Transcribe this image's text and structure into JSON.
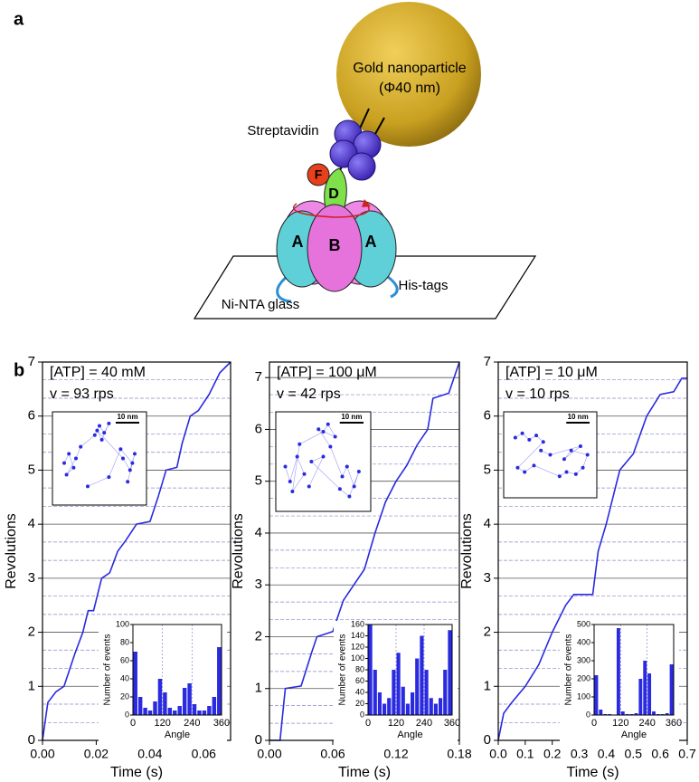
{
  "panel_a": {
    "label": "a",
    "sphere_title": "Gold nanoparticle",
    "sphere_size": "(Φ40 nm)",
    "streptavidin": "Streptavidin",
    "subunit_f": "F",
    "subunit_d": "D",
    "subunit_a_left": "A",
    "subunit_b": "B",
    "subunit_a_right": "A",
    "glass": "Ni-NTA glass",
    "tags": "His-tags"
  },
  "panel_b": {
    "label": "b"
  },
  "chart_data": [
    {
      "type": "line",
      "annotations": [
        "[ATP] = 40 mM",
        "v = 93 rps"
      ],
      "xlabel": "Time (s)",
      "ylabel": "Revolutions",
      "color": "#2a2ae0",
      "grid": true,
      "x": [
        0,
        0.002,
        0.005,
        0.008,
        0.012,
        0.015,
        0.017,
        0.019,
        0.022,
        0.025,
        0.028,
        0.031,
        0.035,
        0.04,
        0.043,
        0.046,
        0.05,
        0.052,
        0.055,
        0.058,
        0.062,
        0.066,
        0.07
      ],
      "values": [
        0,
        0.7,
        0.9,
        1.0,
        1.6,
        2.0,
        2.4,
        2.4,
        3.0,
        3.1,
        3.5,
        3.7,
        4.0,
        4.05,
        4.5,
        5.0,
        5.05,
        5.5,
        6.0,
        6.1,
        6.4,
        6.8,
        7.0
      ],
      "xlim": [
        0,
        0.07
      ],
      "xticks": [
        {
          "value": 0,
          "label": "0.00"
        },
        0.02,
        0.04,
        0.06
      ],
      "ylim": [
        0,
        7
      ],
      "yticks": [
        0,
        1,
        2,
        3,
        4,
        5,
        6,
        7
      ],
      "minor_yticks": [
        0.33,
        0.67,
        1.33,
        1.67,
        2.33,
        2.67,
        3.33,
        3.67,
        4.33,
        4.67,
        5.33,
        5.67,
        6.33,
        6.67
      ],
      "inset_scatter": {
        "type": "scatter",
        "color": "#2a2ae0",
        "scale_bar": {
          "label": "10 nm",
          "length": 10
        },
        "xlim": [
          0,
          40
        ],
        "ylim": [
          0,
          40
        ],
        "x": [
          5,
          7,
          9,
          6,
          10,
          12,
          18,
          20,
          22,
          24,
          21,
          19,
          30,
          33,
          35,
          32,
          34,
          29,
          24,
          15
        ],
        "values": [
          18,
          22,
          16,
          13,
          20,
          25,
          30,
          34,
          31,
          35,
          28,
          32,
          20,
          15,
          22,
          10,
          18,
          24,
          12,
          8
        ]
      },
      "inset_histogram": {
        "type": "histogram",
        "xlabel": "Angle",
        "ylabel": "Number of events",
        "color": "#2a2ae0",
        "grid": true,
        "bins": [
          0,
          20,
          40,
          60,
          80,
          100,
          120,
          140,
          160,
          180,
          200,
          220,
          240,
          260,
          280,
          300,
          320,
          340,
          360
        ],
        "values": [
          70,
          20,
          8,
          5,
          15,
          40,
          25,
          8,
          5,
          10,
          30,
          35,
          12,
          5,
          5,
          10,
          20,
          75
        ],
        "xlim": [
          0,
          360
        ],
        "xticks": [
          0,
          120,
          240,
          360
        ],
        "ylim": [
          0,
          100
        ],
        "yticks": [
          0,
          20,
          40,
          60,
          80,
          100
        ]
      }
    },
    {
      "type": "line",
      "annotations": [
        "[ATP] = 100 μM",
        "v = 42 rps"
      ],
      "xlabel": "Time (s)",
      "ylabel": "Revolutions",
      "color": "#2a2ae0",
      "grid": true,
      "x": [
        0,
        0.01,
        0.015,
        0.03,
        0.04,
        0.045,
        0.06,
        0.07,
        0.08,
        0.09,
        0.1,
        0.11,
        0.12,
        0.13,
        0.14,
        0.15,
        0.155,
        0.17,
        0.18
      ],
      "values": [
        0,
        0,
        1.0,
        1.05,
        1.7,
        2.0,
        2.1,
        2.7,
        3.0,
        3.3,
        4.0,
        4.6,
        5.0,
        5.3,
        5.7,
        6.0,
        6.6,
        6.7,
        7.3
      ],
      "xlim": [
        0,
        0.18
      ],
      "xticks": [
        {
          "value": 0,
          "label": "0.00"
        },
        0.06,
        0.12,
        0.18
      ],
      "ylim": [
        0,
        7.3
      ],
      "yticks": [
        0,
        1,
        2,
        3,
        4,
        5,
        6,
        7
      ],
      "minor_yticks": [
        0.33,
        0.67,
        1.33,
        1.67,
        2.33,
        2.67,
        3.33,
        3.67,
        4.33,
        4.67,
        5.33,
        5.67,
        6.33,
        6.67
      ],
      "inset_scatter": {
        "type": "scatter",
        "color": "#2a2ae0",
        "scale_bar": {
          "label": "10 nm",
          "length": 10
        },
        "xlim": [
          0,
          40
        ],
        "ylim": [
          0,
          40
        ],
        "x": [
          4,
          6,
          9,
          12,
          7,
          10,
          20,
          22,
          25,
          18,
          23,
          28,
          30,
          33,
          35,
          31,
          27,
          15,
          20,
          14
        ],
        "values": [
          18,
          12,
          22,
          15,
          8,
          27,
          32,
          35,
          30,
          33,
          26,
          14,
          18,
          10,
          16,
          6,
          9,
          20,
          22,
          10
        ]
      },
      "inset_histogram": {
        "type": "histogram",
        "xlabel": "Angle",
        "ylabel": "Number of events",
        "color": "#2a2ae0",
        "grid": true,
        "bins": [
          0,
          20,
          40,
          60,
          80,
          100,
          120,
          140,
          160,
          180,
          200,
          220,
          240,
          260,
          280,
          300,
          320,
          340,
          360
        ],
        "values": [
          160,
          80,
          40,
          20,
          30,
          80,
          110,
          50,
          20,
          40,
          100,
          140,
          80,
          30,
          20,
          30,
          80,
          150
        ],
        "xlim": [
          0,
          360
        ],
        "xticks": [
          0,
          120,
          240,
          360
        ],
        "ylim": [
          0,
          160
        ],
        "yticks": [
          0,
          20,
          40,
          60,
          80,
          100,
          120,
          140,
          160
        ]
      }
    },
    {
      "type": "line",
      "annotations": [
        "[ATP] = 10 μM",
        "v = 10 rps"
      ],
      "xlabel": "Time (s)",
      "ylabel": "Revolutions",
      "color": "#2a2ae0",
      "grid": true,
      "x": [
        0,
        0.02,
        0.05,
        0.1,
        0.15,
        0.2,
        0.25,
        0.28,
        0.35,
        0.37,
        0.4,
        0.45,
        0.5,
        0.55,
        0.6,
        0.65,
        0.68,
        0.7
      ],
      "values": [
        0,
        0.5,
        0.7,
        1.0,
        1.4,
        2.0,
        2.5,
        2.7,
        2.7,
        3.5,
        4.0,
        5.0,
        5.3,
        6.0,
        6.4,
        6.45,
        6.7,
        6.7
      ],
      "xlim": [
        0,
        0.7
      ],
      "xticks": [
        {
          "value": 0,
          "label": "0.0"
        },
        0.1,
        0.2,
        0.3,
        0.4,
        0.5,
        0.6,
        0.7
      ],
      "ylim": [
        0,
        7
      ],
      "yticks": [
        0,
        1,
        2,
        3,
        4,
        5,
        6,
        7
      ],
      "minor_yticks": [
        0.33,
        0.67,
        1.33,
        1.67,
        2.33,
        2.67,
        3.33,
        3.67,
        4.33,
        4.67,
        5.33,
        5.67,
        6.33,
        6.67
      ],
      "inset_scatter": {
        "type": "scatter",
        "color": "#2a2ae0",
        "scale_bar": {
          "label": "10 nm",
          "length": 10
        },
        "xlim": [
          0,
          40
        ],
        "ylim": [
          0,
          40
        ],
        "x": [
          5,
          8,
          11,
          14,
          17,
          6,
          9,
          13,
          24,
          27,
          31,
          34,
          36,
          29,
          26,
          33,
          20,
          16
        ],
        "values": [
          28,
          30,
          27,
          29,
          26,
          14,
          12,
          15,
          10,
          12,
          11,
          14,
          20,
          22,
          18,
          24,
          20,
          22
        ]
      },
      "inset_histogram": {
        "type": "histogram",
        "xlabel": "Angle",
        "ylabel": "Number of events",
        "color": "#2a2ae0",
        "grid": true,
        "bins": [
          0,
          20,
          40,
          60,
          80,
          100,
          120,
          140,
          160,
          180,
          200,
          220,
          240,
          260,
          280,
          300,
          320,
          340,
          360
        ],
        "values": [
          220,
          30,
          5,
          5,
          0,
          480,
          20,
          5,
          5,
          10,
          200,
          300,
          230,
          20,
          5,
          5,
          10,
          280
        ],
        "xlim": [
          0,
          360
        ],
        "xticks": [
          0,
          120,
          240,
          360
        ],
        "ylim": [
          0,
          500
        ],
        "yticks": [
          0,
          100,
          200,
          300,
          400,
          500
        ]
      }
    }
  ]
}
